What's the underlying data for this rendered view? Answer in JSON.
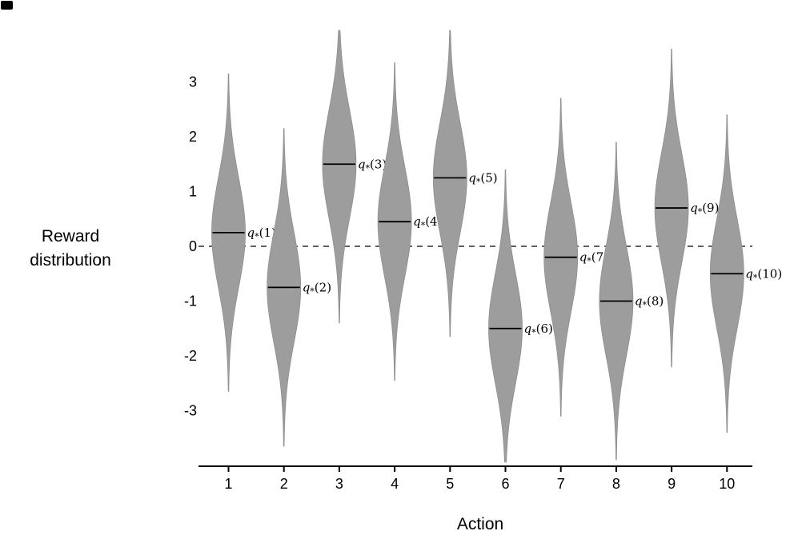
{
  "chart_data": {
    "type": "violin",
    "xlabel": "Action",
    "ylabel": "Reward distribution",
    "categories": [
      "1",
      "2",
      "3",
      "4",
      "5",
      "6",
      "7",
      "8",
      "9",
      "10"
    ],
    "series": [
      {
        "name": "q*(1)",
        "mean": 0.25
      },
      {
        "name": "q*(2)",
        "mean": -0.75
      },
      {
        "name": "q*(3)",
        "mean": 1.5
      },
      {
        "name": "q*(4)",
        "mean": 0.45
      },
      {
        "name": "q*(5)",
        "mean": 1.25
      },
      {
        "name": "q*(6)",
        "mean": -1.5
      },
      {
        "name": "q*(7)",
        "mean": -0.2
      },
      {
        "name": "q*(8)",
        "mean": -1.0
      },
      {
        "name": "q*(9)",
        "mean": 0.7
      },
      {
        "name": "q*(10)",
        "mean": -0.5
      }
    ],
    "y_ticks": [
      3,
      2,
      1,
      0,
      -1,
      -2,
      -3
    ],
    "ylim": [
      -3.95,
      3.95
    ],
    "baseline": 0,
    "baseline_style": "dashed",
    "violin_sigma": 1,
    "violin_tail_sigma": 2.9,
    "violin_fill": "#9d9d9d",
    "violin_stroke": "#8f8f8f",
    "axis_color": "#000000",
    "grid": false,
    "legend": false
  }
}
